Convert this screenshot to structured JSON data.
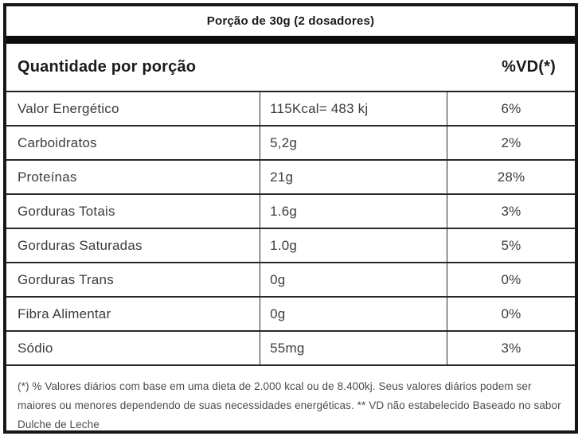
{
  "title": {
    "serving": "Porção de 30g (2 dosadores)"
  },
  "header": {
    "left": "Quantidade por porção",
    "right": "%VD(*)"
  },
  "table": {
    "rows": [
      {
        "name": "Valor Energético",
        "amount": "115Kcal= 483 kj",
        "vd": "6%"
      },
      {
        "name": "Carboidratos",
        "amount": "5,2g",
        "vd": "2%"
      },
      {
        "name": "Proteínas",
        "amount": "21g",
        "vd": "28%"
      },
      {
        "name": "Gorduras Totais",
        "amount": "1.6g",
        "vd": "3%"
      },
      {
        "name": "Gorduras Saturadas",
        "amount": "1.0g",
        "vd": "5%"
      },
      {
        "name": "Gorduras Trans",
        "amount": "0g",
        "vd": "0%"
      },
      {
        "name": "Fibra Alimentar",
        "amount": "0g",
        "vd": "0%"
      },
      {
        "name": "Sódio",
        "amount": "55mg",
        "vd": "3%"
      }
    ]
  },
  "footnote": {
    "text": "(*) % Valores diários com base em uma dieta de 2.000 kcal ou de 8.400kj. Seus valores diários podem ser maiores ou menores dependendo de suas necessidades energéticas. ** VD não estabelecido Baseado no sabor Dulche de Leche"
  },
  "colors": {
    "border": "#171717",
    "thick_bar": "#0c0c0c",
    "heading_text": "#1b1b1b",
    "body_text": "#3c3c3c",
    "footnote_text": "#4b4b4b",
    "background": "#ffffff"
  }
}
